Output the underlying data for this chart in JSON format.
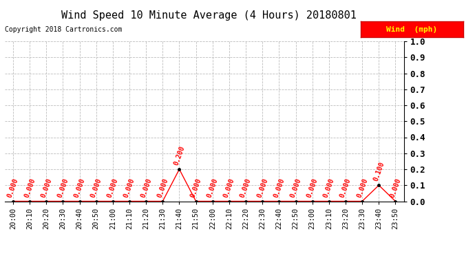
{
  "title": "Wind Speed 10 Minute Average (4 Hours) 20180801",
  "copyright": "Copyright 2018 Cartronics.com",
  "legend_label": "Wind  (mph)",
  "legend_bg": "#ff0000",
  "legend_fg": "#ffff00",
  "ylim": [
    0.0,
    1.0
  ],
  "yticks": [
    0.0,
    0.1,
    0.2,
    0.3,
    0.4,
    0.5,
    0.6,
    0.7,
    0.8,
    0.9,
    1.0
  ],
  "ytick_labels": [
    "0.0",
    "0.1",
    "0.2",
    "0.3",
    "0.4",
    "0.5",
    "0.6",
    "0.7",
    "0.8",
    "0.9",
    "1.0"
  ],
  "x_labels": [
    "20:00",
    "20:10",
    "20:20",
    "20:30",
    "20:40",
    "20:50",
    "21:00",
    "21:10",
    "21:20",
    "21:30",
    "21:40",
    "21:50",
    "22:00",
    "22:10",
    "22:20",
    "22:30",
    "22:40",
    "22:50",
    "23:00",
    "23:10",
    "23:20",
    "23:30",
    "23:40",
    "23:50"
  ],
  "y_values": [
    0.0,
    0.0,
    0.0,
    0.0,
    0.0,
    0.0,
    0.0,
    0.0,
    0.0,
    0.0,
    0.2,
    0.0,
    0.0,
    0.0,
    0.0,
    0.0,
    0.0,
    0.0,
    0.0,
    0.0,
    0.0,
    0.0,
    0.1,
    0.0
  ],
  "line_color": "#ff0000",
  "marker_color": "#000000",
  "annotation_color": "#ff0000",
  "bg_color": "#ffffff",
  "grid_color": "#bbbbbb",
  "title_fontsize": 11,
  "copyright_fontsize": 7,
  "annotation_fontsize": 7,
  "tick_fontsize": 7.5,
  "ytick_fontsize": 9
}
